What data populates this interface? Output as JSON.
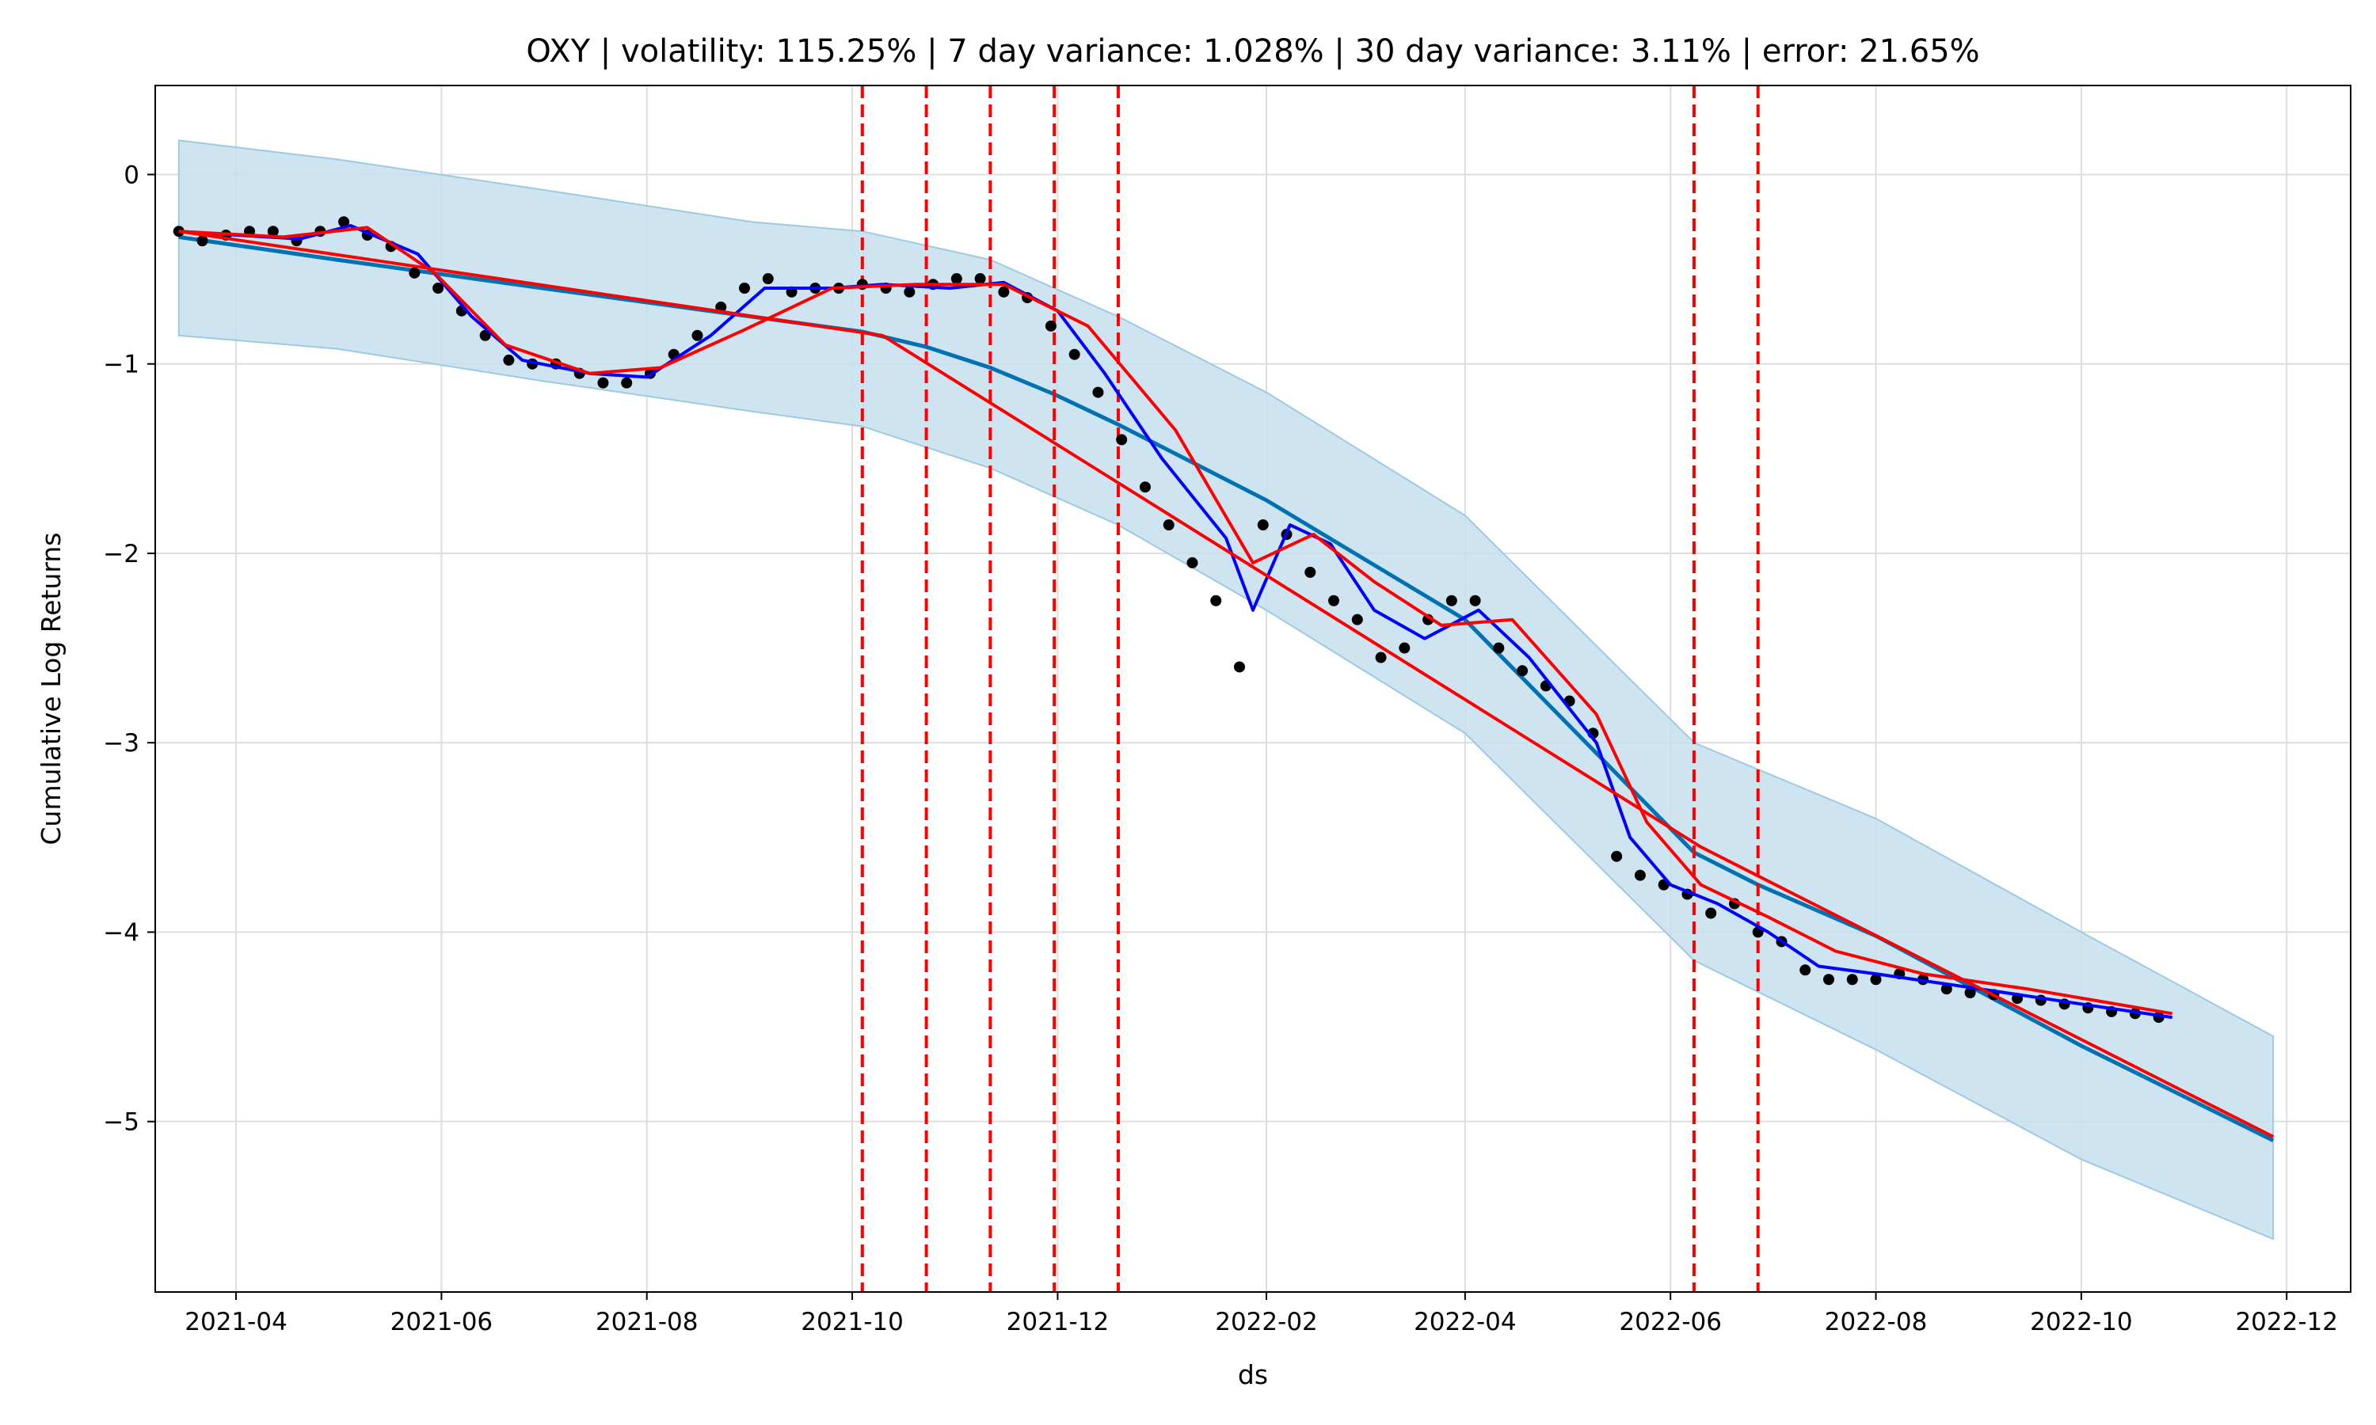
{
  "chart_data": {
    "type": "line",
    "title": "OXY | volatility: 115.25% | 7 day variance: 1.028% | 30 day variance: 3.11% | error: 21.65%",
    "xlabel": "ds",
    "ylabel": "Cumulative Log Returns",
    "xlim": [
      "2021-03-08",
      "2022-12-20"
    ],
    "ylim": [
      -5.9,
      0.47
    ],
    "grid": true,
    "x_ticks": [
      "2021-04-01",
      "2021-06-01",
      "2021-08-01",
      "2021-10-01",
      "2021-12-01",
      "2022-02-01",
      "2022-04-01",
      "2022-06-01",
      "2022-08-01",
      "2022-10-01",
      "2022-12-01"
    ],
    "x_tick_labels": [
      "2021-04",
      "2021-06",
      "2021-08",
      "2021-10",
      "2021-12",
      "2022-02",
      "2022-04",
      "2022-06",
      "2022-08",
      "2022-10",
      "2022-12"
    ],
    "y_ticks": [
      0,
      -1,
      -2,
      -3,
      -4,
      -5
    ],
    "y_tick_labels": [
      "0",
      "−1",
      "−2",
      "−3",
      "−4",
      "−5"
    ],
    "colors": {
      "observed": "#000000",
      "forecast": "#0072B2",
      "band": "#c6dfee",
      "band_edge": "#9ecae1",
      "short_ma": "#0000ff",
      "long_ma": "#ff0000",
      "changepoint": "#ff0000",
      "grid": "#dddddd"
    },
    "changepoints": [
      "2021-10-04",
      "2021-10-23",
      "2021-11-11",
      "2021-11-30",
      "2021-12-19",
      "2022-06-08",
      "2022-06-27"
    ],
    "forecast": {
      "x": [
        "2021-03-15",
        "2021-05-01",
        "2021-07-01",
        "2021-09-01",
        "2021-10-04",
        "2021-10-23",
        "2021-11-11",
        "2021-11-30",
        "2021-12-19",
        "2022-02-01",
        "2022-04-01",
        "2022-06-08",
        "2022-06-27",
        "2022-08-01",
        "2022-10-01",
        "2022-11-27"
      ],
      "y": [
        -0.33,
        -0.45,
        -0.6,
        -0.75,
        -0.83,
        -0.91,
        -1.02,
        -1.16,
        -1.32,
        -1.72,
        -2.35,
        -3.58,
        -3.75,
        -4.02,
        -4.6,
        -5.1
      ]
    },
    "forecast_lower": {
      "x": [
        "2021-03-15",
        "2021-05-01",
        "2021-07-01",
        "2021-09-01",
        "2021-10-04",
        "2021-11-11",
        "2021-12-19",
        "2022-02-01",
        "2022-04-01",
        "2022-06-08",
        "2022-08-01",
        "2022-10-01",
        "2022-11-27"
      ],
      "y": [
        -0.85,
        -0.92,
        -1.09,
        -1.25,
        -1.33,
        -1.55,
        -1.85,
        -2.3,
        -2.95,
        -4.15,
        -4.62,
        -5.2,
        -5.62
      ]
    },
    "forecast_upper": {
      "x": [
        "2021-03-15",
        "2021-05-01",
        "2021-07-01",
        "2021-09-01",
        "2021-10-04",
        "2021-11-11",
        "2021-12-19",
        "2022-02-01",
        "2022-04-01",
        "2022-06-08",
        "2022-08-01",
        "2022-10-01",
        "2022-11-27"
      ],
      "y": [
        0.18,
        0.08,
        -0.08,
        -0.25,
        -0.3,
        -0.45,
        -0.75,
        -1.15,
        -1.8,
        -3.0,
        -3.4,
        -4.0,
        -4.55
      ]
    },
    "observed": {
      "x": [
        "2021-03-15",
        "2021-03-22",
        "2021-03-29",
        "2021-04-05",
        "2021-04-12",
        "2021-04-19",
        "2021-04-26",
        "2021-05-03",
        "2021-05-10",
        "2021-05-17",
        "2021-05-24",
        "2021-05-31",
        "2021-06-07",
        "2021-06-14",
        "2021-06-21",
        "2021-06-28",
        "2021-07-05",
        "2021-07-12",
        "2021-07-19",
        "2021-07-26",
        "2021-08-02",
        "2021-08-09",
        "2021-08-16",
        "2021-08-23",
        "2021-08-30",
        "2021-09-06",
        "2021-09-13",
        "2021-09-20",
        "2021-09-27",
        "2021-10-04",
        "2021-10-11",
        "2021-10-18",
        "2021-10-25",
        "2021-11-01",
        "2021-11-08",
        "2021-11-15",
        "2021-11-22",
        "2021-11-29",
        "2021-12-06",
        "2021-12-13",
        "2021-12-20",
        "2021-12-27",
        "2022-01-03",
        "2022-01-10",
        "2022-01-17",
        "2022-01-24",
        "2022-01-31",
        "2022-02-07",
        "2022-02-14",
        "2022-02-21",
        "2022-02-28",
        "2022-03-07",
        "2022-03-14",
        "2022-03-21",
        "2022-03-28",
        "2022-04-04",
        "2022-04-11",
        "2022-04-18",
        "2022-04-25",
        "2022-05-02",
        "2022-05-09",
        "2022-05-16",
        "2022-05-23",
        "2022-05-30",
        "2022-06-06",
        "2022-06-13",
        "2022-06-20",
        "2022-06-27",
        "2022-07-04",
        "2022-07-11",
        "2022-07-18",
        "2022-07-25",
        "2022-08-01",
        "2022-08-08",
        "2022-08-15",
        "2022-08-22",
        "2022-08-29",
        "2022-09-05",
        "2022-09-12",
        "2022-09-19",
        "2022-09-26",
        "2022-10-03",
        "2022-10-10",
        "2022-10-17",
        "2022-10-24"
      ],
      "y": [
        -0.3,
        -0.35,
        -0.32,
        -0.3,
        -0.3,
        -0.35,
        -0.3,
        -0.25,
        -0.32,
        -0.38,
        -0.52,
        -0.6,
        -0.72,
        -0.85,
        -0.98,
        -1.0,
        -1.0,
        -1.05,
        -1.1,
        -1.1,
        -1.05,
        -0.95,
        -0.85,
        -0.7,
        -0.6,
        -0.55,
        -0.62,
        -0.6,
        -0.6,
        -0.58,
        -0.6,
        -0.62,
        -0.58,
        -0.55,
        -0.55,
        -0.62,
        -0.65,
        -0.8,
        -0.95,
        -1.15,
        -1.4,
        -1.65,
        -1.85,
        -2.05,
        -2.25,
        -2.6,
        -1.85,
        -1.9,
        -2.1,
        -2.25,
        -2.35,
        -2.55,
        -2.5,
        -2.35,
        -2.25,
        -2.25,
        -2.5,
        -2.62,
        -2.7,
        -2.78,
        -2.95,
        -3.6,
        -3.7,
        -3.75,
        -3.8,
        -3.9,
        -3.85,
        -4.0,
        -4.05,
        -4.2,
        -4.25,
        -4.25,
        -4.25,
        -4.22,
        -4.25,
        -4.3,
        -4.32,
        -4.33,
        -4.35,
        -4.36,
        -4.38,
        -4.4,
        -4.42,
        -4.43,
        -4.45
      ]
    },
    "series": [
      {
        "x": [
          "2021-03-15",
          "2021-04-01",
          "2021-04-20",
          "2021-05-05",
          "2021-05-25",
          "2021-06-10",
          "2021-06-25",
          "2021-07-15",
          "2021-08-01",
          "2021-08-20",
          "2021-09-05",
          "2021-09-25",
          "2021-10-10",
          "2021-10-30",
          "2021-11-15",
          "2021-12-01",
          "2021-12-15",
          "2022-01-01",
          "2022-01-20",
          "2022-01-28",
          "2022-02-08",
          "2022-02-20",
          "2022-03-05",
          "2022-03-20",
          "2022-04-05",
          "2022-04-20",
          "2022-05-10",
          "2022-05-20",
          "2022-06-01",
          "2022-06-15",
          "2022-06-30",
          "2022-07-15",
          "2022-08-01",
          "2022-09-01",
          "2022-10-01",
          "2022-10-28"
        ],
        "y": [
          -0.3,
          -0.32,
          -0.34,
          -0.27,
          -0.42,
          -0.75,
          -0.98,
          -1.05,
          -1.07,
          -0.85,
          -0.6,
          -0.6,
          -0.58,
          -0.6,
          -0.57,
          -0.72,
          -1.05,
          -1.5,
          -1.92,
          -2.3,
          -1.85,
          -1.95,
          -2.3,
          -2.45,
          -2.3,
          -2.55,
          -3.0,
          -3.5,
          -3.75,
          -3.85,
          -4.0,
          -4.18,
          -4.22,
          -4.3,
          -4.38,
          -4.45
        ]
      },
      {
        "x": [
          "2021-03-15",
          "2021-04-15",
          "2021-05-10",
          "2021-05-30",
          "2021-06-20",
          "2021-07-15",
          "2021-08-05",
          "2021-08-30",
          "2021-09-25",
          "2021-10-20",
          "2021-11-15",
          "2021-12-10",
          "2022-01-05",
          "2022-01-28",
          "2022-02-15",
          "2022-03-05",
          "2022-03-25",
          "2022-04-15",
          "2022-05-10",
          "2022-05-25",
          "2022-06-10",
          "2022-06-30",
          "2022-07-20",
          "2022-08-15",
          "2022-09-15",
          "2022-10-28"
        ],
        "y": [
          -0.3,
          -0.33,
          -0.28,
          -0.52,
          -0.9,
          -1.05,
          -1.02,
          -0.82,
          -0.6,
          -0.58,
          -0.58,
          -0.8,
          -1.35,
          -2.05,
          -1.9,
          -2.15,
          -2.38,
          -2.35,
          -2.85,
          -3.42,
          -3.75,
          -3.92,
          -4.1,
          -4.22,
          -4.3,
          -4.43
        ]
      },
      {
        "x": [
          "2021-03-15",
          "2021-10-10",
          "2022-06-10",
          "2022-11-27"
        ],
        "y": [
          -0.3,
          -0.85,
          -3.55,
          -5.08
        ]
      }
    ]
  }
}
